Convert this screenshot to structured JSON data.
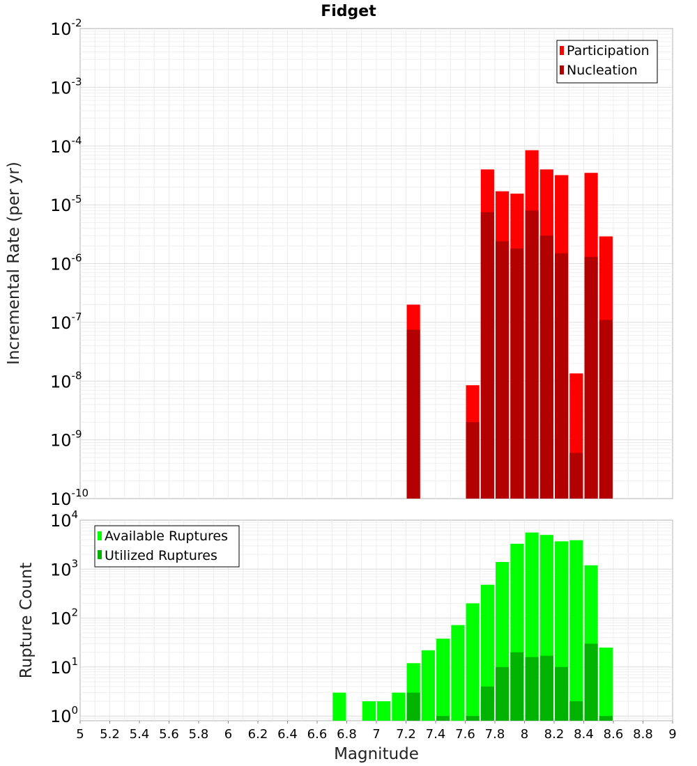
{
  "chart_data": [
    {
      "type": "bar",
      "title": "Fidget",
      "xlabel": "",
      "ylabel": "Incremental Rate (per yr)",
      "yscale": "log",
      "xlim": [
        5,
        9
      ],
      "ylim": [
        1e-10,
        0.01
      ],
      "ytick_labels": [
        {
          "base": "10",
          "exp": "-10"
        },
        {
          "base": "10",
          "exp": "-9"
        },
        {
          "base": "10",
          "exp": "-8"
        },
        {
          "base": "10",
          "exp": "-7"
        },
        {
          "base": "10",
          "exp": "-6"
        },
        {
          "base": "10",
          "exp": "-5"
        },
        {
          "base": "10",
          "exp": "-4"
        },
        {
          "base": "10",
          "exp": "-3"
        },
        {
          "base": "10",
          "exp": "-2"
        }
      ],
      "legend_position": "top-right",
      "grid": true,
      "x": [
        7.25,
        7.65,
        7.75,
        7.85,
        7.95,
        8.05,
        8.15,
        8.25,
        8.35,
        8.45,
        8.55
      ],
      "series": [
        {
          "name": "Participation",
          "color": "#ff0000",
          "values": [
            2e-07,
            8.5e-09,
            4e-05,
            1.7e-05,
            1.55e-05,
            8.5e-05,
            4e-05,
            3.2e-05,
            1.35e-08,
            3.5e-05,
            2.9e-06
          ]
        },
        {
          "name": "Nucleation",
          "color": "#b30000",
          "values": [
            7.5e-08,
            2e-09,
            7.5e-06,
            2.4e-06,
            1.8e-06,
            8e-06,
            3e-06,
            1.5e-06,
            6e-10,
            1.3e-06,
            1.1e-07
          ]
        }
      ]
    },
    {
      "type": "bar",
      "title": "",
      "xlabel": "Magnitude",
      "ylabel": "Rupture Count",
      "yscale": "log",
      "xlim": [
        5,
        9
      ],
      "ylim": [
        0.8,
        10000.0
      ],
      "ytick_labels": [
        {
          "base": "10",
          "exp": "0"
        },
        {
          "base": "10",
          "exp": "1"
        },
        {
          "base": "10",
          "exp": "2"
        },
        {
          "base": "10",
          "exp": "3"
        },
        {
          "base": "10",
          "exp": "4"
        }
      ],
      "xtick_labels": [
        "5",
        "5.2",
        "5.4",
        "5.6",
        "5.8",
        "6",
        "6.2",
        "6.4",
        "6.6",
        "6.8",
        "7",
        "7.2",
        "7.4",
        "7.6",
        "7.8",
        "8",
        "8.2",
        "8.4",
        "8.6",
        "8.8",
        "9"
      ],
      "legend_position": "top-left",
      "grid": true,
      "x": [
        6.75,
        6.95,
        7.05,
        7.15,
        7.25,
        7.35,
        7.45,
        7.55,
        7.65,
        7.75,
        7.85,
        7.95,
        8.05,
        8.15,
        8.25,
        8.35,
        8.45,
        8.55
      ],
      "series": [
        {
          "name": "Available Ruptures",
          "color": "#00ff00",
          "values": [
            3,
            2,
            2,
            3,
            12,
            22,
            38,
            72,
            200,
            480,
            1400,
            3300,
            5600,
            5000,
            3700,
            3900,
            1200,
            25
          ]
        },
        {
          "name": "Utilized Ruptures",
          "color": "#00b300",
          "values": [
            0,
            0,
            0,
            0,
            3,
            0,
            1,
            0,
            1,
            4,
            10,
            20,
            16,
            17,
            10,
            2,
            30,
            1
          ]
        }
      ]
    }
  ]
}
